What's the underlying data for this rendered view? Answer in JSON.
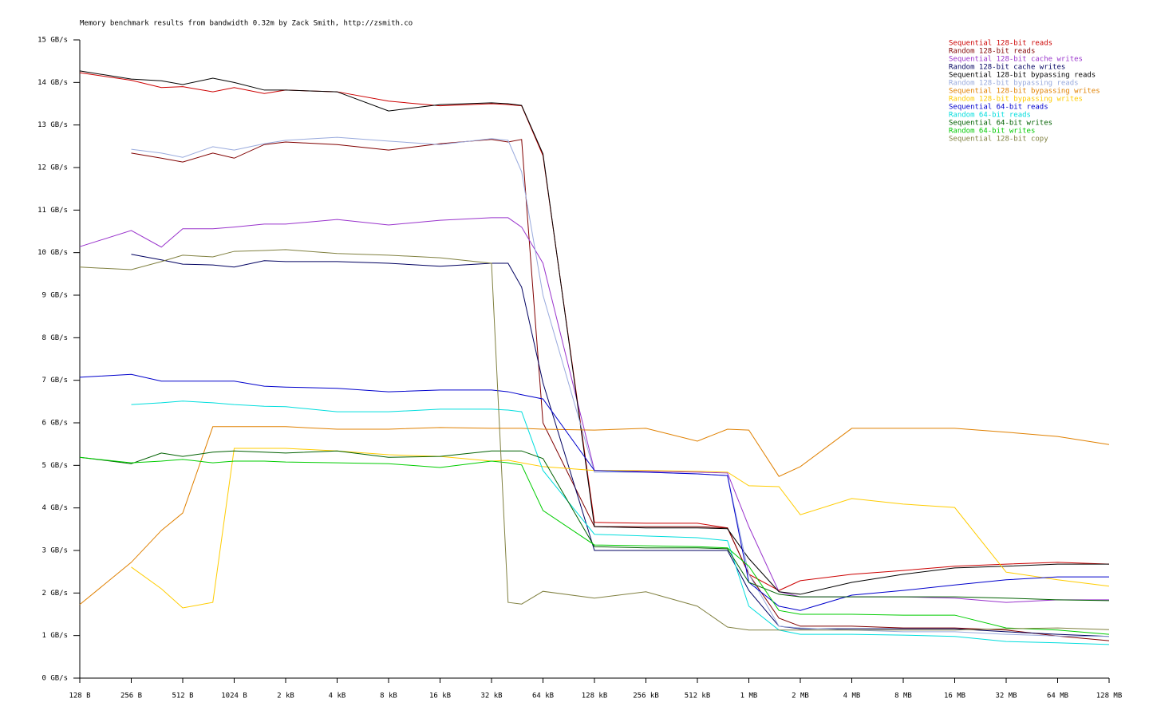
{
  "chart_data": {
    "type": "line",
    "title": "Memory benchmark results from bandwidth 0.32m by Zack Smith, http://zsmith.co",
    "x": [
      128,
      256,
      384,
      512,
      768,
      1024,
      1536,
      2048,
      4096,
      8192,
      16384,
      32768,
      40960,
      49152,
      65536,
      131072,
      262144,
      524288,
      786432,
      1048576,
      1572864,
      2097152,
      4194304,
      8388608,
      16777216,
      33554432,
      67108864,
      134217728
    ],
    "xscale": "log",
    "grid": false,
    "legend": "top-right",
    "xlim": [
      128,
      134217728
    ],
    "xticks": [
      {
        "value": 128,
        "label": "128 B"
      },
      {
        "value": 256,
        "label": "256 B"
      },
      {
        "value": 512,
        "label": "512 B"
      },
      {
        "value": 1024,
        "label": "1024 B"
      },
      {
        "value": 2048,
        "label": "2 kB"
      },
      {
        "value": 4096,
        "label": "4 kB"
      },
      {
        "value": 8192,
        "label": "8 kB"
      },
      {
        "value": 16384,
        "label": "16 kB"
      },
      {
        "value": 32768,
        "label": "32 kB"
      },
      {
        "value": 65536,
        "label": "64 kB"
      },
      {
        "value": 131072,
        "label": "128 kB"
      },
      {
        "value": 262144,
        "label": "256 kB"
      },
      {
        "value": 524288,
        "label": "512 kB"
      },
      {
        "value": 1048576,
        "label": "1 MB"
      },
      {
        "value": 2097152,
        "label": "2 MB"
      },
      {
        "value": 4194304,
        "label": "4 MB"
      },
      {
        "value": 8388608,
        "label": "8 MB"
      },
      {
        "value": 16777216,
        "label": "16 MB"
      },
      {
        "value": 33554432,
        "label": "32 MB"
      },
      {
        "value": 67108864,
        "label": "64 MB"
      },
      {
        "value": 134217728,
        "label": "128 MB"
      }
    ],
    "ylim": [
      0,
      15
    ],
    "yticks": [
      {
        "value": 0,
        "label": "0 GB/s"
      },
      {
        "value": 1,
        "label": "1 GB/s"
      },
      {
        "value": 2,
        "label": "2 GB/s"
      },
      {
        "value": 3,
        "label": "3 GB/s"
      },
      {
        "value": 4,
        "label": "4 GB/s"
      },
      {
        "value": 5,
        "label": "5 GB/s"
      },
      {
        "value": 6,
        "label": "6 GB/s"
      },
      {
        "value": 7,
        "label": "7 GB/s"
      },
      {
        "value": 8,
        "label": "8 GB/s"
      },
      {
        "value": 9,
        "label": "9 GB/s"
      },
      {
        "value": 10,
        "label": "10 GB/s"
      },
      {
        "value": 11,
        "label": "11 GB/s"
      },
      {
        "value": 12,
        "label": "12 GB/s"
      },
      {
        "value": 13,
        "label": "13 GB/s"
      },
      {
        "value": 14,
        "label": "14 GB/s"
      },
      {
        "value": 15,
        "label": "15 GB/s"
      }
    ],
    "series": [
      {
        "name": "Sequential 128-bit reads",
        "color": "#cc0000",
        "values": [
          14.23,
          14.05,
          13.88,
          13.9,
          13.78,
          13.88,
          13.74,
          13.82,
          13.78,
          13.56,
          13.45,
          13.5,
          13.48,
          13.45,
          12.28,
          3.66,
          3.64,
          3.64,
          3.53,
          2.44,
          2.06,
          2.29,
          2.44,
          2.53,
          2.63,
          2.68,
          2.72,
          2.68
        ]
      },
      {
        "name": "Random 128-bit reads",
        "color": "#800000",
        "values": [
          null,
          12.34,
          12.22,
          12.13,
          12.34,
          12.22,
          12.54,
          12.6,
          12.54,
          12.41,
          12.56,
          12.66,
          12.6,
          12.66,
          6,
          3.56,
          3.56,
          3.56,
          3.53,
          2.44,
          1.41,
          1.22,
          1.22,
          1.18,
          1.18,
          1.13,
          0.99,
          0.88
        ]
      },
      {
        "name": "Sequential 128-bit cache writes",
        "color": "#9933cc",
        "values": [
          10.14,
          10.52,
          10.13,
          10.56,
          10.56,
          10.6,
          10.67,
          10.67,
          10.78,
          10.65,
          10.76,
          10.82,
          10.82,
          10.6,
          9.75,
          4.88,
          4.86,
          4.84,
          4.82,
          3.56,
          2.03,
          1.91,
          1.91,
          1.91,
          1.88,
          1.78,
          1.84,
          1.84
        ]
      },
      {
        "name": "Random 128-bit cache writes",
        "color": "#000060",
        "values": [
          null,
          9.96,
          9.83,
          9.73,
          9.71,
          9.66,
          9.81,
          9.79,
          9.79,
          9.75,
          9.68,
          9.75,
          9.75,
          9.19,
          6.94,
          3,
          3,
          3,
          3,
          2.06,
          1.22,
          1.16,
          1.16,
          1.16,
          1.16,
          1.09,
          1.03,
          0.98
        ]
      },
      {
        "name": "Sequential 128-bit bypassing reads",
        "color": "#000000",
        "values": [
          14.27,
          14.08,
          14.04,
          13.95,
          14.1,
          14,
          13.82,
          13.82,
          13.78,
          13.33,
          13.48,
          13.52,
          13.5,
          13.46,
          12.32,
          3.56,
          3.53,
          3.53,
          3.51,
          2.81,
          2.03,
          1.97,
          2.25,
          2.44,
          2.59,
          2.63,
          2.68,
          2.68
        ]
      },
      {
        "name": "Random 128-bit bypassing reads",
        "color": "#99aadd",
        "values": [
          null,
          12.43,
          12.34,
          12.24,
          12.49,
          12.41,
          12.56,
          12.64,
          12.71,
          12.62,
          12.54,
          12.68,
          12.64,
          11.9,
          9,
          4.84,
          4.84,
          4.8,
          4.76,
          2.44,
          1.22,
          1.18,
          1.13,
          1.09,
          1.09,
          1.03,
          0.99,
          0.98
        ]
      },
      {
        "name": "Sequential 128-bit bypassing writes",
        "color": "#e08000",
        "values": [
          1.73,
          2.72,
          3.47,
          3.88,
          5.91,
          5.91,
          5.91,
          5.91,
          5.85,
          5.85,
          5.89,
          5.87,
          5.87,
          5.87,
          5.85,
          5.83,
          5.87,
          5.57,
          5.85,
          5.83,
          4.74,
          4.97,
          5.87,
          5.87,
          5.87,
          5.78,
          5.68,
          5.49
        ]
      },
      {
        "name": "Random 128-bit bypassing writes",
        "color": "#ffcc00",
        "values": [
          null,
          2.61,
          2.1,
          1.65,
          1.78,
          5.4,
          5.4,
          5.4,
          5.34,
          5.25,
          5.21,
          5.1,
          5.12,
          5.06,
          4.97,
          4.88,
          4.88,
          4.86,
          4.84,
          4.52,
          4.5,
          3.84,
          4.22,
          4.09,
          4.01,
          2.49,
          2.31,
          2.16
        ]
      },
      {
        "name": "Sequential 64-bit reads",
        "color": "#0000cc",
        "values": [
          7.07,
          7.14,
          6.98,
          6.98,
          6.98,
          6.98,
          6.86,
          6.84,
          6.81,
          6.73,
          6.77,
          6.77,
          6.73,
          6.66,
          6.56,
          4.88,
          4.84,
          4.8,
          4.76,
          2.25,
          1.69,
          1.59,
          1.95,
          2.06,
          2.19,
          2.31,
          2.38,
          2.38
        ]
      },
      {
        "name": "Random 64-bit reads",
        "color": "#00dddd",
        "values": [
          null,
          6.43,
          6.47,
          6.51,
          6.47,
          6.43,
          6.39,
          6.38,
          6.26,
          6.26,
          6.32,
          6.32,
          6.3,
          6.26,
          4.88,
          3.38,
          3.34,
          3.3,
          3.23,
          1.69,
          1.13,
          1.03,
          1.03,
          1.01,
          0.98,
          0.86,
          0.83,
          0.79
        ]
      },
      {
        "name": "Sequential 64-bit writes",
        "color": "#006000",
        "values": [
          5.19,
          5.04,
          5.29,
          5.21,
          5.31,
          5.34,
          5.31,
          5.29,
          5.34,
          5.19,
          5.21,
          5.34,
          5.34,
          5.34,
          5.16,
          3.09,
          3.06,
          3.06,
          3.04,
          2.25,
          1.97,
          1.91,
          1.91,
          1.91,
          1.91,
          1.88,
          1.84,
          1.82
        ]
      },
      {
        "name": "Random 64-bit writes",
        "color": "#00cc00",
        "values": [
          5.19,
          5.06,
          5.1,
          5.14,
          5.06,
          5.1,
          5.1,
          5.08,
          5.06,
          5.04,
          4.95,
          5.1,
          5.06,
          5.01,
          3.94,
          3.13,
          3.11,
          3.09,
          3.06,
          2.63,
          1.59,
          1.5,
          1.5,
          1.48,
          1.48,
          1.18,
          1.13,
          1.03
        ]
      },
      {
        "name": "Sequential 128-bit copy",
        "color": "#808040",
        "values": [
          9.66,
          9.6,
          9.79,
          9.94,
          9.9,
          10.03,
          10.05,
          10.07,
          9.98,
          9.94,
          9.88,
          9.75,
          1.78,
          1.74,
          2.04,
          1.88,
          2.03,
          1.69,
          1.2,
          1.13,
          1.13,
          1.13,
          1.13,
          1.13,
          1.13,
          1.16,
          1.18,
          1.14
        ]
      }
    ]
  }
}
